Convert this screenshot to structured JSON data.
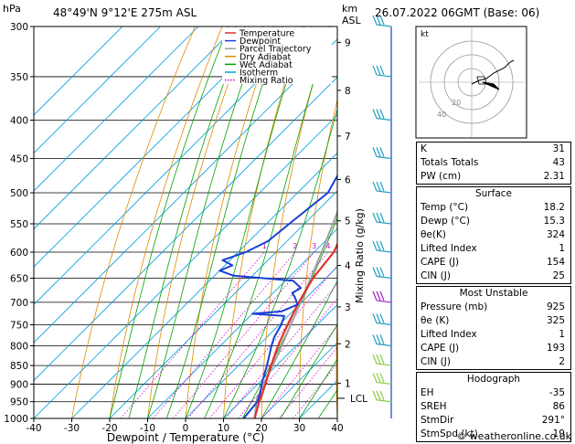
{
  "header": {
    "location": "48°49'N  9°12'E  275m  ASL",
    "datetime": "26.07.2022  06GMT  (Base: 06)",
    "hpa_label": "hPa",
    "km_label": "km",
    "asl_label": "ASL"
  },
  "colors": {
    "temperature": "#e03030",
    "dewpoint": "#1a3fd6",
    "parcel": "#a0a0a0",
    "dry_adiabat": "#e08a00",
    "wet_adiabat": "#00a000",
    "isotherm": "#00a0e0",
    "mixing_ratio": "#d000d0"
  },
  "legend": [
    "Temperature",
    "Dewpoint",
    "Parcel Trajectory",
    "Dry Adiabat",
    "Wet Adiabat",
    "Isotherm",
    "Mixing Ratio"
  ],
  "chart_data": {
    "type": "line",
    "xlabel": "Dewpoint / Temperature (°C)",
    "ylabel": "hPa",
    "right_label": "Mixing Ratio (g/kg)",
    "xlim": [
      -40,
      40
    ],
    "ylim": [
      1000,
      300
    ],
    "x_ticks": [
      "-40",
      "-30",
      "-20",
      "-10",
      "0",
      "10",
      "20",
      "30",
      "40"
    ],
    "pressure_ticks": [
      300,
      350,
      400,
      450,
      500,
      550,
      600,
      650,
      700,
      750,
      800,
      850,
      900,
      950,
      1000
    ],
    "km_ticks": [
      {
        "km": "1",
        "p": 898
      },
      {
        "km": "2",
        "p": 795
      },
      {
        "km": "3",
        "p": 710
      },
      {
        "km": "4",
        "p": 625
      },
      {
        "km": "5",
        "p": 545
      },
      {
        "km": "6",
        "p": 480
      },
      {
        "km": "7",
        "p": 420
      },
      {
        "km": "8",
        "p": 365
      },
      {
        "km": "9",
        "p": 315
      }
    ],
    "lcl": {
      "label": "LCL",
      "p": 940
    },
    "mixing_ratio_labels": [
      "1",
      "2",
      "3",
      "4",
      "6",
      "8",
      "10",
      "15",
      "20",
      "25"
    ],
    "series": [
      {
        "name": "Temperature",
        "points": [
          [
            1000,
            18.2
          ],
          [
            950,
            15.0
          ],
          [
            925,
            13.6
          ],
          [
            900,
            12.0
          ],
          [
            850,
            8.6
          ],
          [
            800,
            5.2
          ],
          [
            750,
            2.2
          ],
          [
            700,
            -0.8
          ],
          [
            650,
            -3.4
          ],
          [
            600,
            -4.8
          ],
          [
            550,
            -8.8
          ],
          [
            500,
            -13.8
          ],
          [
            450,
            -19.5
          ],
          [
            400,
            -26.5
          ],
          [
            350,
            -34.5
          ],
          [
            300,
            -43.0
          ]
        ]
      },
      {
        "name": "Dewpoint",
        "points": [
          [
            1000,
            15.3
          ],
          [
            950,
            14.5
          ],
          [
            925,
            13.0
          ],
          [
            900,
            11.0
          ],
          [
            850,
            7.5
          ],
          [
            800,
            3.5
          ],
          [
            780,
            2.0
          ],
          [
            750,
            0.5
          ],
          [
            730,
            -1.0
          ],
          [
            725,
            -10.0
          ],
          [
            720,
            -3.0
          ],
          [
            705,
            -0.5
          ],
          [
            690,
            -3.0
          ],
          [
            680,
            -5.0
          ],
          [
            670,
            -4.0
          ],
          [
            655,
            -8.0
          ],
          [
            645,
            -25.0
          ],
          [
            635,
            -30.0
          ],
          [
            625,
            -28.0
          ],
          [
            615,
            -32.0
          ],
          [
            600,
            -28.0
          ],
          [
            580,
            -25.0
          ],
          [
            550,
            -24.0
          ],
          [
            500,
            -22.0
          ],
          [
            450,
            -26.0
          ],
          [
            400,
            -27.0
          ],
          [
            380,
            -24.0
          ],
          [
            360,
            -29.0
          ],
          [
            340,
            -22.0
          ],
          [
            320,
            -25.0
          ],
          [
            300,
            -28.0
          ]
        ]
      },
      {
        "name": "Parcel Trajectory",
        "points": [
          [
            1000,
            18.2
          ],
          [
            940,
            13.5
          ],
          [
            900,
            11.5
          ],
          [
            850,
            9.0
          ],
          [
            800,
            6.2
          ],
          [
            750,
            3.0
          ],
          [
            700,
            -0.3
          ],
          [
            650,
            -4.0
          ],
          [
            600,
            -8.0
          ],
          [
            550,
            -12.5
          ],
          [
            500,
            -17.5
          ],
          [
            450,
            -23.0
          ],
          [
            400,
            -29.5
          ],
          [
            350,
            -37.0
          ],
          [
            300,
            -46.0
          ]
        ]
      }
    ]
  },
  "indices": [
    {
      "label": "K",
      "value": "31"
    },
    {
      "label": "Totals Totals",
      "value": "43"
    },
    {
      "label": "PW (cm)",
      "value": "2.31"
    }
  ],
  "surface": {
    "title": "Surface",
    "rows": [
      {
        "label": "Temp (°C)",
        "value": "18.2"
      },
      {
        "label": "Dewp (°C)",
        "value": "15.3"
      },
      {
        "label": "θe(K)",
        "value": "324"
      },
      {
        "label": "Lifted Index",
        "value": "1"
      },
      {
        "label": "CAPE (J)",
        "value": "154"
      },
      {
        "label": "CIN (J)",
        "value": "25"
      }
    ]
  },
  "most_unstable": {
    "title": "Most Unstable",
    "rows": [
      {
        "label": "Pressure (mb)",
        "value": "925"
      },
      {
        "label": "θe (K)",
        "value": "325"
      },
      {
        "label": "Lifted Index",
        "value": "1"
      },
      {
        "label": "CAPE (J)",
        "value": "193"
      },
      {
        "label": "CIN (J)",
        "value": "2"
      }
    ]
  },
  "hodograph": {
    "title": "Hodograph",
    "label": "kt",
    "ring_labels": [
      "20",
      "40"
    ],
    "rows": [
      {
        "label": "EH",
        "value": "-35"
      },
      {
        "label": "SREH",
        "value": "86"
      },
      {
        "label": "StmDir",
        "value": "291°"
      },
      {
        "label": "StmSpd (kt)",
        "value": "19"
      }
    ]
  },
  "footer": "© weatheronline.co.uk"
}
